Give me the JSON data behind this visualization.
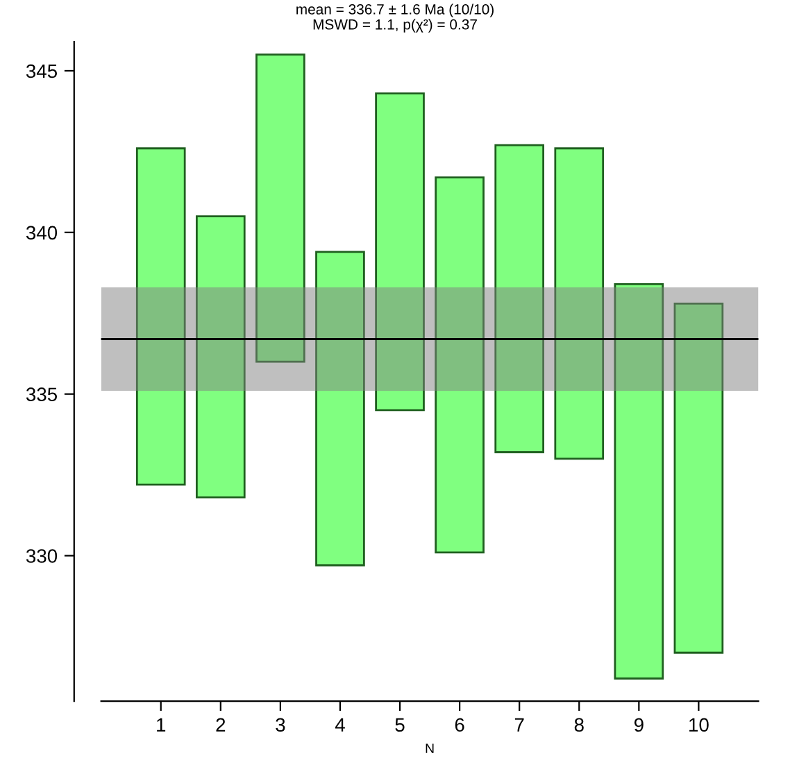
{
  "chart_data": {
    "type": "bar",
    "title": "mean = 336.7 ± 1.6 Ma (10/10)",
    "subtitle": "MSWD = 1.1, p(χ²) = 0.37",
    "xlabel": "N",
    "x": [
      1,
      2,
      3,
      4,
      5,
      6,
      7,
      8,
      9,
      10
    ],
    "base": [
      332.2,
      331.8,
      336.0,
      329.7,
      334.5,
      330.1,
      333.2,
      333.0,
      326.2,
      327.0
    ],
    "values": [
      10.4,
      8.7,
      9.5,
      9.7,
      9.8,
      11.6,
      9.5,
      9.6,
      12.2,
      10.8
    ],
    "color": "#80ff80",
    "xlim": [
      0,
      11
    ],
    "xticks": [
      1,
      2,
      3,
      4,
      5,
      6,
      7,
      8,
      9,
      10
    ],
    "ylim": [
      325.5,
      345.9
    ],
    "yticks": [
      330,
      335,
      340,
      345
    ],
    "ref_lines": [
      {
        "axis": "y",
        "value": 336.7,
        "color": "#000000"
      }
    ],
    "bands": [
      {
        "axis": "y",
        "from": 335.1,
        "to": 338.3,
        "color": "#7f7f7f"
      }
    ],
    "grid": false
  }
}
